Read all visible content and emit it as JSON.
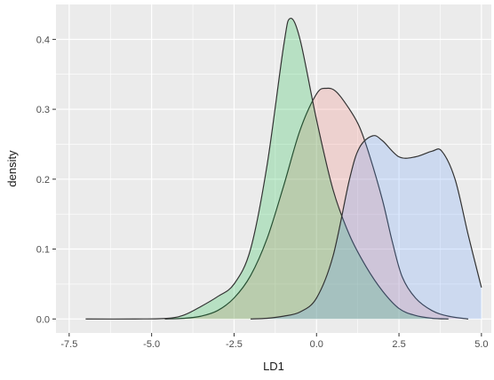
{
  "chart_data": {
    "type": "area",
    "title": "",
    "xlabel": "LD1",
    "ylabel": "density",
    "xlim": [
      -7.5,
      5.0
    ],
    "ylim": [
      0,
      0.45
    ],
    "x_ticks": [
      -7.5,
      -5.0,
      -2.5,
      0.0,
      2.5,
      5.0
    ],
    "x_tick_labels": [
      "-7.5",
      "-5.0",
      "-2.5",
      "0.0",
      "2.5",
      "5.0"
    ],
    "y_ticks": [
      0.0,
      0.1,
      0.2,
      0.3,
      0.4
    ],
    "y_tick_labels": [
      "0.0",
      "0.1",
      "0.2",
      "0.3",
      "0.4"
    ],
    "grid": true,
    "legend": "none",
    "colors": {
      "panel_background": "#ebebeb",
      "grid_major": "#ffffff",
      "outline": "#333333",
      "axis_text": "#4d4d4d"
    },
    "series": [
      {
        "fill": "#f8766d",
        "x": [
          -4.6,
          -4.0,
          -3.5,
          -3.0,
          -2.5,
          -2.0,
          -1.5,
          -1.0,
          -0.5,
          0.0,
          0.3,
          0.6,
          1.0,
          1.3,
          1.6,
          2.0,
          2.3,
          2.6,
          3.0,
          3.5,
          4.0,
          4.6
        ],
        "y": [
          0.0,
          0.001,
          0.004,
          0.012,
          0.03,
          0.062,
          0.115,
          0.19,
          0.27,
          0.322,
          0.33,
          0.325,
          0.3,
          0.275,
          0.235,
          0.17,
          0.11,
          0.06,
          0.03,
          0.012,
          0.004,
          0.0
        ]
      },
      {
        "fill": "#00ba38",
        "x": [
          -7.0,
          -5.5,
          -4.5,
          -4.0,
          -3.5,
          -3.0,
          -2.5,
          -2.0,
          -1.5,
          -1.0,
          -0.8,
          -0.5,
          0.0,
          0.5,
          1.0,
          1.5,
          2.0,
          2.5,
          3.0,
          3.5,
          4.0
        ],
        "y": [
          0.0,
          0.0,
          0.001,
          0.006,
          0.018,
          0.032,
          0.05,
          0.1,
          0.22,
          0.39,
          0.43,
          0.4,
          0.285,
          0.185,
          0.12,
          0.075,
          0.04,
          0.015,
          0.005,
          0.001,
          0.0
        ]
      },
      {
        "fill": "#619cff",
        "x": [
          -2.0,
          -1.5,
          -1.0,
          -0.5,
          0.0,
          0.5,
          1.0,
          1.3,
          1.7,
          2.0,
          2.5,
          3.0,
          3.5,
          3.8,
          4.2,
          4.6,
          5.0
        ],
        "y": [
          0.0,
          0.001,
          0.004,
          0.01,
          0.03,
          0.09,
          0.2,
          0.245,
          0.262,
          0.255,
          0.232,
          0.232,
          0.24,
          0.24,
          0.2,
          0.12,
          0.045
        ]
      }
    ]
  }
}
